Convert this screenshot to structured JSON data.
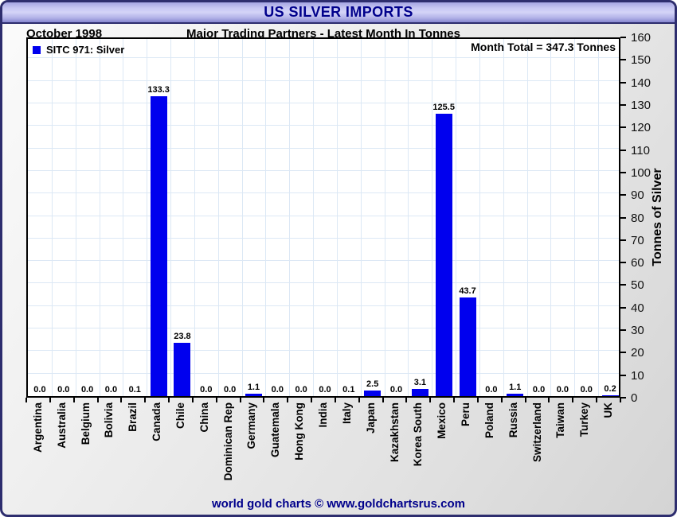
{
  "window": {
    "title": "US SILVER IMPORTS"
  },
  "header": {
    "date": "October 1998",
    "subtitle": "Major Trading Partners - Latest Month In Tonnes"
  },
  "legend": {
    "label": "SITC 971: Silver"
  },
  "annotations": {
    "month_total": "Month Total = 347.3 Tonnes"
  },
  "footer": {
    "credit": "world gold charts © www.goldchartsrus.com"
  },
  "colors": {
    "bar": "#0000ee",
    "grid": "#dce8f5",
    "title_text": "#00008b",
    "footer_text": "#00008b",
    "titlebar_border": "#2d2d6e"
  },
  "chart_data": {
    "type": "bar",
    "title": "US SILVER IMPORTS",
    "subtitle": "Major Trading Partners - Latest Month In Tonnes",
    "period": "October 1998",
    "series_name": "SITC 971: Silver",
    "categories": [
      "Argentina",
      "Australia",
      "Belgium",
      "Bolivia",
      "Brazil",
      "Canada",
      "Chile",
      "China",
      "Dominican Rep",
      "Germany",
      "Guatemala",
      "Hong Kong",
      "India",
      "Italy",
      "Japan",
      "Kazakhstan",
      "Korea South",
      "Mexico",
      "Peru",
      "Poland",
      "Russia",
      "Switzerland",
      "Taiwan",
      "Turkey",
      "UK"
    ],
    "values": [
      0.0,
      0.0,
      0.0,
      0.0,
      0.1,
      133.3,
      23.8,
      0.0,
      0.0,
      1.1,
      0.0,
      0.0,
      0.0,
      0.1,
      2.5,
      0.0,
      3.1,
      125.5,
      43.7,
      0.0,
      1.1,
      0.0,
      0.0,
      0.0,
      0.2
    ],
    "xlabel": "",
    "ylabel": "Tonnes of Silver",
    "ylim": [
      0,
      160
    ],
    "ytick_step": 10,
    "grid": true,
    "legend_position": "top-left",
    "month_total": 347.3
  }
}
